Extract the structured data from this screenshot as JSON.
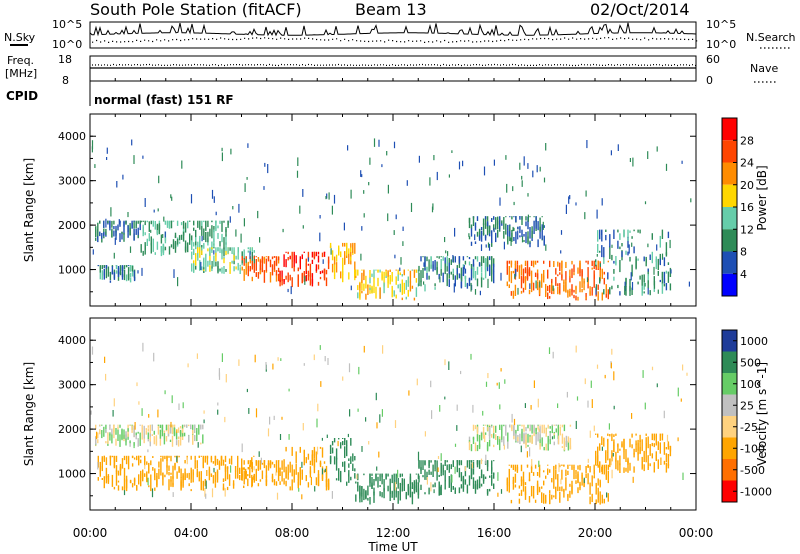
{
  "header": {
    "station": "South Pole Station (fitACF)",
    "beam": "Beam 13",
    "date": "02/Oct/2014"
  },
  "noise_panel": {
    "left_label": "N.Sky",
    "right_label": "N.Search",
    "tick_top_left": "10^5",
    "tick_bottom_left": "10^0",
    "tick_top_right": "10^5",
    "tick_bottom_right": "10^0"
  },
  "freq_panel": {
    "left_label_1": "Freq.",
    "left_label_2": "[MHz]",
    "right_label": "Nave",
    "left_ticks": [
      "18",
      "8"
    ],
    "right_ticks": [
      "60",
      "0"
    ]
  },
  "cpid": {
    "label": "CPID",
    "text": "normal (fast) 151 RF"
  },
  "power_panel": {
    "ylabel": "Slant Range [km]",
    "yticks": [
      "4000",
      "3000",
      "2000",
      "1000"
    ],
    "colorbar_label": "Power [dB]",
    "colorbar_ticks": [
      "28",
      "24",
      "20",
      "16",
      "12",
      "8",
      "4"
    ],
    "colors": [
      "#0000ff",
      "#1e4fb4",
      "#2e8b57",
      "#66cdaa",
      "#ffd700",
      "#ff8c00",
      "#ff4500",
      "#ff0000"
    ]
  },
  "velocity_panel": {
    "ylabel": "Slant Range [km]",
    "yticks": [
      "4000",
      "3000",
      "2000",
      "1000"
    ],
    "colorbar_label": "Velocity [m s^-1]",
    "colorbar_ticks": [
      "1000",
      "500",
      "100",
      "25",
      "-25",
      "-100",
      "-500",
      "-1000"
    ],
    "colors": [
      "#1f3c99",
      "#2e8b57",
      "#66cc66",
      "#c0c0c0",
      "#ffd27f",
      "#ffa500",
      "#ff6f00",
      "#ff0000"
    ]
  },
  "xaxis": {
    "label": "Time UT",
    "ticks": [
      "00:00",
      "04:00",
      "08:00",
      "12:00",
      "16:00",
      "20:00",
      "00:00"
    ]
  },
  "chart_data": [
    {
      "type": "heatmap",
      "title": "Power",
      "xlabel": "Time UT",
      "ylabel": "Slant Range [km]",
      "ylim": [
        180,
        4500
      ],
      "xlim": [
        "00:00",
        "24:00"
      ],
      "colorbar": {
        "label": "Power [dB]",
        "range": [
          0,
          32
        ],
        "ticks": [
          4,
          8,
          12,
          16,
          20,
          24,
          28
        ]
      },
      "regions": [
        {
          "t_start": 0.2,
          "t_end": 2.0,
          "range_start": 1600,
          "range_end": 2100,
          "value": 8
        },
        {
          "t_start": 0.3,
          "t_end": 1.8,
          "range_start": 700,
          "range_end": 1100,
          "value": 10
        },
        {
          "t_start": 2.0,
          "t_end": 5.5,
          "range_start": 1300,
          "range_end": 2100,
          "value": 12
        },
        {
          "t_start": 4.0,
          "t_end": 6.5,
          "range_start": 900,
          "range_end": 1500,
          "value": 14
        },
        {
          "t_start": 6.0,
          "t_end": 7.5,
          "range_start": 700,
          "range_end": 1300,
          "value": 24
        },
        {
          "t_start": 7.5,
          "t_end": 9.5,
          "range_start": 600,
          "range_end": 1400,
          "value": 28
        },
        {
          "t_start": 9.5,
          "t_end": 10.5,
          "range_start": 700,
          "range_end": 1600,
          "value": 20
        },
        {
          "t_start": 10.5,
          "t_end": 13.0,
          "range_start": 300,
          "range_end": 1000,
          "value": 18
        },
        {
          "t_start": 13.0,
          "t_end": 16.0,
          "range_start": 500,
          "range_end": 1300,
          "value": 10
        },
        {
          "t_start": 15.0,
          "t_end": 18.0,
          "range_start": 1500,
          "range_end": 2200,
          "value": 8
        },
        {
          "t_start": 16.5,
          "t_end": 20.5,
          "range_start": 300,
          "range_end": 1200,
          "value": 24
        },
        {
          "t_start": 20.0,
          "t_end": 23.0,
          "range_start": 400,
          "range_end": 1900,
          "value": 10
        }
      ]
    },
    {
      "type": "heatmap",
      "title": "Velocity",
      "xlabel": "Time UT",
      "ylabel": "Slant Range [km]",
      "ylim": [
        180,
        4500
      ],
      "xlim": [
        "00:00",
        "24:00"
      ],
      "colorbar": {
        "label": "Velocity [m s^-1]",
        "ticks": [
          1000,
          500,
          100,
          25,
          -25,
          -100,
          -500,
          -1000
        ]
      },
      "regions": [
        {
          "t_start": 0.2,
          "t_end": 4.5,
          "range_start": 1600,
          "range_end": 2100,
          "value": 0
        },
        {
          "t_start": 0.3,
          "t_end": 6.5,
          "range_start": 600,
          "range_end": 1400,
          "value": -300
        },
        {
          "t_start": 6.0,
          "t_end": 7.5,
          "range_start": 700,
          "range_end": 1300,
          "value": -300
        },
        {
          "t_start": 7.5,
          "t_end": 9.5,
          "range_start": 600,
          "range_end": 1600,
          "value": -200
        },
        {
          "t_start": 9.5,
          "t_end": 10.5,
          "range_start": 700,
          "range_end": 1800,
          "value": 300
        },
        {
          "t_start": 10.5,
          "t_end": 13.0,
          "range_start": 300,
          "range_end": 1000,
          "value": 200
        },
        {
          "t_start": 13.0,
          "t_end": 16.0,
          "range_start": 500,
          "range_end": 1300,
          "value": 250
        },
        {
          "t_start": 15.0,
          "t_end": 19.0,
          "range_start": 1500,
          "range_end": 2100,
          "value": 0
        },
        {
          "t_start": 16.5,
          "t_end": 20.5,
          "range_start": 300,
          "range_end": 1200,
          "value": -400
        },
        {
          "t_start": 20.0,
          "t_end": 23.0,
          "range_start": 1000,
          "range_end": 1900,
          "value": -300
        }
      ]
    }
  ]
}
